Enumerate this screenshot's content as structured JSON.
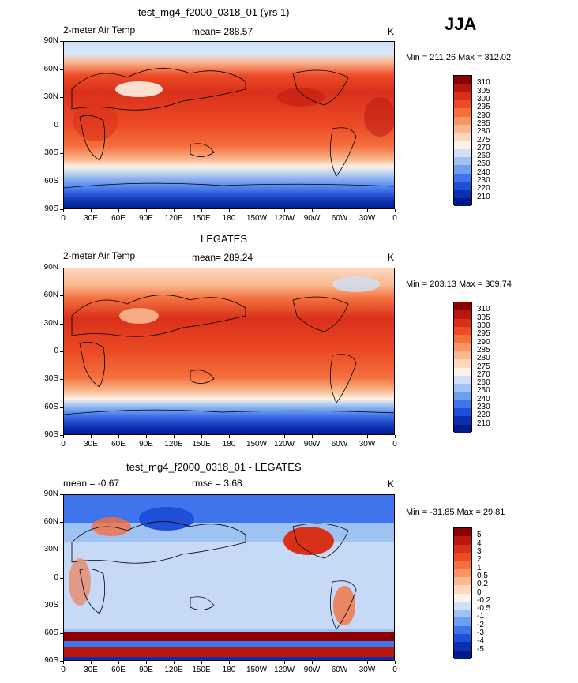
{
  "page_title": "JJA",
  "panels": [
    {
      "title": "test_mg4_f2000_0318_01 (yrs 1)",
      "left_label": "2-meter Air Temp",
      "center_label": "mean= 288.57",
      "right_label": "K",
      "minmax": "Min = 211.26 Max = 312.02",
      "type": "absolute"
    },
    {
      "title": "LEGATES",
      "left_label": "2-meter Air Temp",
      "center_label": "mean= 289.24",
      "right_label": "K",
      "minmax": "Min = 203.13 Max = 309.74",
      "type": "absolute"
    },
    {
      "title": "test_mg4_f2000_0318_01 - LEGATES",
      "left_label": "mean =    -0.67",
      "center_label": "rmse =     3.68",
      "right_label": "K",
      "minmax": "Min = -31.85 Max =   29.81",
      "type": "difference"
    }
  ],
  "lat_labels": [
    "90N",
    "60N",
    "30N",
    "0",
    "30S",
    "60S",
    "90S"
  ],
  "lon_labels": [
    "0",
    "30E",
    "60E",
    "90E",
    "120E",
    "150E",
    "180",
    "150W",
    "120W",
    "90W",
    "60W",
    "30W",
    "0"
  ],
  "colorbar_abs": {
    "labels": [
      "310",
      "305",
      "300",
      "295",
      "290",
      "285",
      "280",
      "275",
      "270",
      "260",
      "250",
      "240",
      "230",
      "220",
      "210"
    ],
    "colors": [
      "#8b0000",
      "#b8160f",
      "#d9301a",
      "#ec4b26",
      "#f4703d",
      "#f79563",
      "#f9b88f",
      "#fcd9bd",
      "#fdf2e6",
      "#cfe0f7",
      "#9ec2f2",
      "#6f9ff0",
      "#3f74ec",
      "#1e4fd6",
      "#0b2fb0",
      "#001a8a"
    ]
  },
  "colorbar_diff": {
    "labels": [
      "5",
      "4",
      "3",
      "2",
      "1",
      "0.5",
      "0.2",
      "0",
      "-0.2",
      "-0.5",
      "-1",
      "-2",
      "-3",
      "-4",
      "-5"
    ],
    "colors": [
      "#8b0000",
      "#b8160f",
      "#d9301a",
      "#ec4b26",
      "#f4703d",
      "#f79563",
      "#f9b88f",
      "#fcd9bd",
      "#fdf2e6",
      "#cfe0f7",
      "#9ec2f2",
      "#6f9ff0",
      "#3f74ec",
      "#1e4fd6",
      "#0b2fb0",
      "#001a8a"
    ]
  }
}
